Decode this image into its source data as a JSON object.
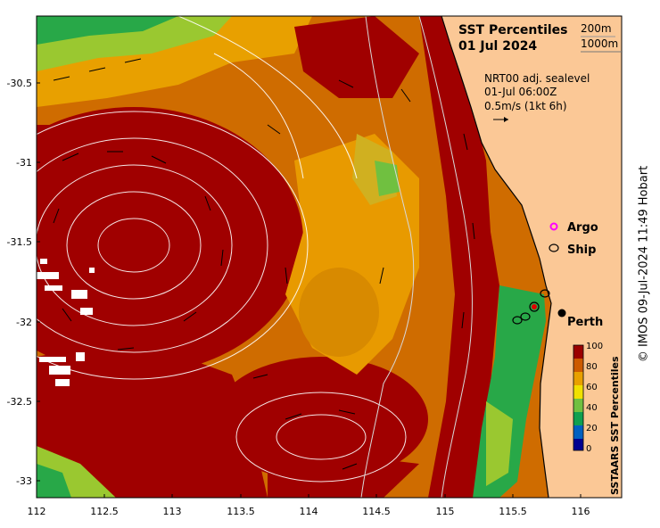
{
  "title": {
    "line1": "SST Percentiles",
    "line2": "01 Jul 2024"
  },
  "depth_contours": {
    "label_200": "200m",
    "label_1000": "1000m"
  },
  "currents": {
    "product": "NRT00 adj. sealevel",
    "time": "01-Jul 06:00Z",
    "scale": "0.5m/s (1kt 6h)"
  },
  "legend": {
    "argo": "Argo",
    "ship": "Ship",
    "argo_color": "#ff00ff"
  },
  "places": {
    "city": "Perth"
  },
  "colorbar": {
    "title": "SSTAARS SST Percentiles",
    "ticks": [
      "100",
      "80",
      "60",
      "40",
      "20",
      "0"
    ],
    "colors": [
      "#9b0000",
      "#cc5a00",
      "#e8a000",
      "#f0e000",
      "#70c040",
      "#10a050",
      "#0060c0",
      "#000090"
    ]
  },
  "axes": {
    "x_ticks": [
      "112",
      "112.5",
      "113",
      "113.5",
      "114",
      "114.5",
      "115",
      "115.5",
      "116"
    ],
    "y_ticks": [
      "-30.5",
      "-31",
      "-31.5",
      "-32",
      "-32.5",
      "-33"
    ]
  },
  "credit": "© IMOS 09-Jul-2024 11:49 Hobart",
  "colors": {
    "land": "#fbc896",
    "high": "#a00000",
    "warm": "#cf6c00",
    "mid": "#f0a000",
    "cool": "#9ac830",
    "green": "#28a848"
  }
}
